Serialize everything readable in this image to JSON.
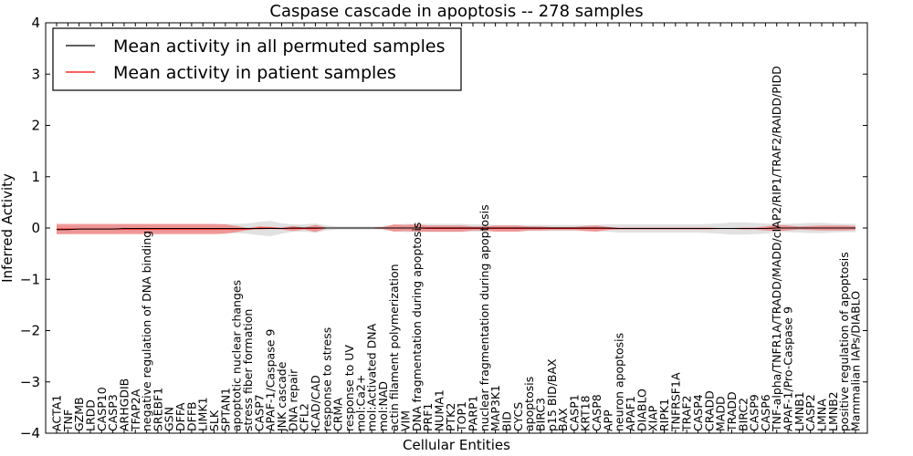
{
  "chart_data": {
    "type": "line",
    "title": "Caspase cascade in apoptosis -- 278 samples",
    "xlabel": "Cellular Entities",
    "ylabel": "Inferred Activity",
    "ylim": [
      -4,
      4
    ],
    "yticks": [
      -4,
      -3,
      -2,
      -1,
      0,
      1,
      2,
      3,
      4
    ],
    "ytick_labels": [
      "−4",
      "−3",
      "−2",
      "−1",
      "0",
      "1",
      "2",
      "3",
      "4"
    ],
    "legend_position": "top-left",
    "categories": [
      "ACTA1",
      "TNF",
      "GZMB",
      "LRDD",
      "CASP10",
      "CASP3",
      "ARHGDIB",
      "TFAP2A",
      "negative regulation of DNA binding",
      "SREBF1",
      "GSN",
      "DFFA",
      "DFFB",
      "LIMK1",
      "SLK",
      "SPTAN1",
      "apoptotic nuclear changes",
      "stress fiber formation",
      "CASP7",
      "APAF-1/Caspase 9",
      "JNK cascade",
      "DNA repair",
      "CFL2",
      "ICAD/CAD",
      "response to stress",
      "CRMA",
      "response to UV",
      "mol:Ca2+",
      "mol:Activated DNA",
      "mol:NAD",
      "actin filament polymerization",
      "VIM",
      "DNA fragmentation during apoptosis",
      "PRF1",
      "NUMA1",
      "PTK2",
      "TOP1",
      "PARP1",
      "nuclear fragmentation during apoptosis",
      "MAP3K1",
      "BID",
      "CYCS",
      "apoptosis",
      "BIRC3",
      "p15 BID/BAX",
      "BAX",
      "CASP1",
      "KRT18",
      "CASP8",
      "APP",
      "neuron apoptosis",
      "APAF1",
      "DIABLO",
      "XIAP",
      "RIPK1",
      "TNFRSF1A",
      "TRAF2",
      "CASP4",
      "CRADD",
      "MADD",
      "TRADD",
      "BIRC2",
      "CASP9",
      "CASP6",
      "TNF-alpha/TNFR1A/TRADD/MADD/cIAP2/RIP1/TRAF2/RAIDD/PIDD",
      "APAF-1/Pro-Caspase 9",
      "LMNB1",
      "CASP2",
      "LMNA",
      "LMNB2",
      "positive regulation of apoptosis",
      "Mammalian IAPs/DIABLO"
    ],
    "series": [
      {
        "name": "Mean activity in all permuted samples",
        "color": "#000000",
        "band_color": "#c8c8c8",
        "values": [
          -0.03,
          -0.03,
          -0.02,
          -0.02,
          -0.02,
          -0.02,
          -0.01,
          -0.01,
          -0.01,
          -0.01,
          -0.01,
          -0.01,
          -0.01,
          -0.01,
          -0.01,
          -0.01,
          -0.01,
          -0.01,
          -0.01,
          -0.01,
          -0.01,
          0.0,
          0.0,
          0.0,
          0.0,
          0.0,
          0.0,
          0.0,
          0.0,
          0.0,
          0.0,
          0.0,
          0.0,
          0.0,
          0.0,
          0.0,
          0.0,
          0.0,
          0.0,
          0.0,
          0.0,
          0.0,
          0.0,
          0.0,
          0.0,
          0.0,
          0.0,
          0.0,
          0.0,
          0.0,
          -0.01,
          -0.01,
          -0.01,
          -0.01,
          -0.01,
          -0.01,
          -0.01,
          -0.01,
          -0.01,
          -0.01,
          -0.01,
          -0.01,
          -0.01,
          -0.01,
          0.0,
          0.0,
          0.0,
          0.0,
          0.0,
          0.0,
          0.0,
          0.0
        ],
        "std": [
          0.08,
          0.08,
          0.08,
          0.08,
          0.08,
          0.08,
          0.08,
          0.08,
          0.08,
          0.08,
          0.08,
          0.08,
          0.08,
          0.08,
          0.08,
          0.09,
          0.09,
          0.1,
          0.13,
          0.15,
          0.1,
          0.07,
          0.07,
          0.09,
          0.05,
          0.03,
          0.03,
          0.03,
          0.03,
          0.03,
          0.06,
          0.08,
          0.08,
          0.08,
          0.08,
          0.08,
          0.08,
          0.07,
          0.07,
          0.06,
          0.06,
          0.06,
          0.06,
          0.06,
          0.06,
          0.06,
          0.06,
          0.06,
          0.06,
          0.07,
          0.08,
          0.08,
          0.08,
          0.08,
          0.08,
          0.08,
          0.08,
          0.08,
          0.09,
          0.1,
          0.12,
          0.12,
          0.11,
          0.1,
          0.08,
          0.08,
          0.09,
          0.1,
          0.1,
          0.09,
          0.08,
          0.08
        ]
      },
      {
        "name": "Mean activity in patient samples",
        "color": "#ff0000",
        "band_color": "#f07c7c",
        "values": [
          -0.02,
          -0.02,
          -0.02,
          -0.02,
          -0.02,
          -0.02,
          -0.02,
          -0.02,
          -0.02,
          -0.02,
          -0.02,
          -0.02,
          -0.02,
          -0.02,
          -0.02,
          -0.02,
          -0.02,
          -0.02,
          0.0,
          0.0,
          -0.01,
          -0.01,
          -0.01,
          -0.01,
          0.0,
          0.0,
          0.0,
          0.0,
          0.0,
          0.0,
          0.0,
          0.0,
          0.0,
          -0.01,
          -0.01,
          -0.01,
          -0.01,
          -0.01,
          -0.01,
          -0.01,
          -0.01,
          -0.01,
          -0.01,
          -0.01,
          -0.01,
          -0.01,
          -0.01,
          -0.01,
          -0.01,
          -0.01,
          -0.01,
          -0.01,
          -0.01,
          -0.01,
          -0.01,
          -0.01,
          -0.01,
          -0.01,
          -0.01,
          -0.01,
          -0.01,
          -0.01,
          -0.01,
          -0.01,
          0.0,
          0.0,
          0.0,
          0.0,
          0.0,
          0.0,
          0.0,
          0.0
        ],
        "std": [
          0.1,
          0.1,
          0.1,
          0.1,
          0.1,
          0.1,
          0.1,
          0.1,
          0.1,
          0.1,
          0.1,
          0.1,
          0.1,
          0.1,
          0.1,
          0.09,
          0.06,
          0.02,
          0.03,
          0.02,
          0.02,
          0.05,
          0.02,
          0.07,
          0.01,
          0.01,
          0.01,
          0.01,
          0.01,
          0.02,
          0.07,
          0.06,
          0.07,
          0.06,
          0.06,
          0.06,
          0.06,
          0.04,
          0.04,
          0.06,
          0.06,
          0.06,
          0.04,
          0.04,
          0.03,
          0.03,
          0.03,
          0.05,
          0.06,
          0.03,
          0.02,
          0.02,
          0.02,
          0.02,
          0.02,
          0.02,
          0.02,
          0.02,
          0.02,
          0.01,
          0.01,
          0.02,
          0.02,
          0.04,
          0.06,
          0.05,
          0.03,
          0.04,
          0.05,
          0.05,
          0.05,
          0.04
        ]
      }
    ]
  }
}
